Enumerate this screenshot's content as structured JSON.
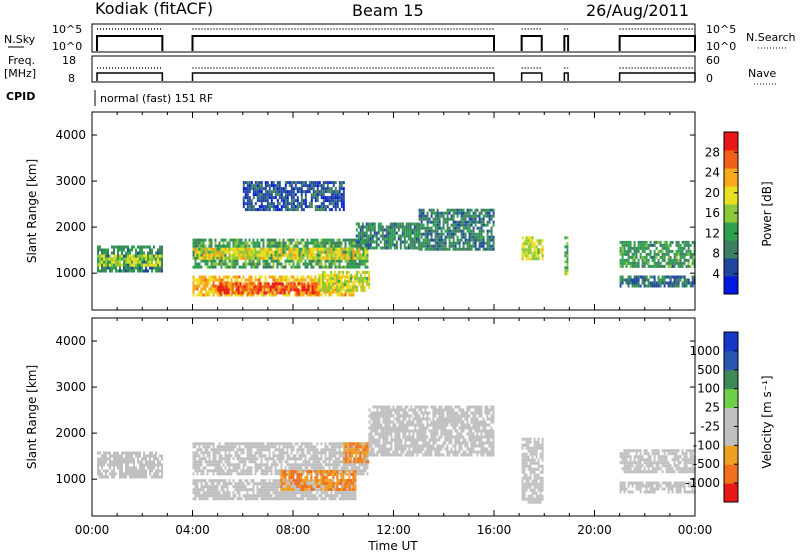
{
  "header": {
    "station": "Kodiak (fitACF)",
    "beam": "Beam 15",
    "date": "26/Aug/2011"
  },
  "panels": {
    "nsky": {
      "label": "N.Sky",
      "ticks_left": [
        "10^5",
        "10^0"
      ],
      "ticks_right": [
        "10^5",
        "10^0"
      ],
      "right_label": "N.Search"
    },
    "freq": {
      "label_lines": [
        "Freq.",
        "[MHz]"
      ],
      "ticks_left": [
        "18",
        "8"
      ],
      "ticks_right": [
        "60",
        "0"
      ],
      "right_label": "Nave"
    },
    "cpid": {
      "label": "CPID",
      "value": "normal (fast) 151 RF"
    }
  },
  "colors": {
    "power": [
      "#0018e0",
      "#2046a0",
      "#3c8060",
      "#2fa050",
      "#8cc838",
      "#e8e020",
      "#f8a818",
      "#f06018",
      "#e81818"
    ],
    "velocity": [
      "#1838c8",
      "#2a58b0",
      "#3d8a58",
      "#6ed048",
      "#c0c0c0",
      "#c0c0c0",
      "#f0a020",
      "#f07020",
      "#e81818"
    ]
  },
  "chart_data": [
    {
      "type": "heatmap",
      "name": "power",
      "ylabel": "Slant Range [km]",
      "yticks": [
        "1000",
        "2000",
        "3000",
        "4000"
      ],
      "ylim": [
        200,
        4500
      ],
      "xlim_hours": [
        0,
        24
      ],
      "colorbar_label": "Power [dB]",
      "colorbar_ticks": [
        "4",
        "8",
        "12",
        "16",
        "20",
        "24",
        "28"
      ],
      "colorbar_range": [
        0,
        32
      ],
      "bands": [
        {
          "t0": 0.2,
          "t1": 2.8,
          "r0": 1050,
          "r1": 1600,
          "v": 10
        },
        {
          "t0": 0.2,
          "t1": 2.8,
          "r0": 1200,
          "r1": 1400,
          "v": 17
        },
        {
          "t0": 4.0,
          "t1": 11.0,
          "r0": 1150,
          "r1": 1750,
          "v": 12
        },
        {
          "t0": 4.0,
          "t1": 11.0,
          "r0": 1300,
          "r1": 1550,
          "v": 19
        },
        {
          "t0": 4.0,
          "t1": 10.5,
          "r0": 550,
          "r1": 950,
          "v": 22
        },
        {
          "t0": 5.0,
          "t1": 9.0,
          "r0": 600,
          "r1": 800,
          "v": 28
        },
        {
          "t0": 9.0,
          "t1": 11.0,
          "r0": 650,
          "r1": 1050,
          "v": 18
        },
        {
          "t0": 6.0,
          "t1": 10.0,
          "r0": 2400,
          "r1": 3000,
          "v": 6
        },
        {
          "t0": 10.5,
          "t1": 13.0,
          "r0": 1550,
          "r1": 2100,
          "v": 10
        },
        {
          "t0": 13.0,
          "t1": 16.0,
          "r0": 1500,
          "r1": 2400,
          "v": 9
        },
        {
          "t0": 17.1,
          "t1": 17.9,
          "r0": 1300,
          "r1": 1800,
          "v": 18
        },
        {
          "t0": 18.8,
          "t1": 18.95,
          "r0": 1000,
          "r1": 1800,
          "v": 14
        },
        {
          "t0": 21.0,
          "t1": 24.0,
          "r0": 1150,
          "r1": 1700,
          "v": 11
        },
        {
          "t0": 21.0,
          "t1": 24.0,
          "r0": 750,
          "r1": 950,
          "v": 8
        }
      ]
    },
    {
      "type": "heatmap",
      "name": "velocity",
      "xlabel": "Time UT",
      "ylabel": "Slant Range [km]",
      "yticks": [
        "1000",
        "2000",
        "3000",
        "4000"
      ],
      "ylim": [
        200,
        4500
      ],
      "xticks": [
        "00:00",
        "04:00",
        "08:00",
        "12:00",
        "16:00",
        "20:00",
        "00:00"
      ],
      "xlim_hours": [
        0,
        24
      ],
      "colorbar_label": "Velocity [m s⁻¹]",
      "colorbar_ticks": [
        "1000",
        "500",
        "100",
        "25",
        "-25",
        "-100",
        "-500",
        "-1000"
      ],
      "bands": [
        {
          "t0": 0.2,
          "t1": 2.8,
          "r0": 1050,
          "r1": 1600,
          "v": 0
        },
        {
          "t0": 4.0,
          "t1": 11.0,
          "r0": 1100,
          "r1": 1800,
          "v": 0
        },
        {
          "t0": 4.0,
          "t1": 10.5,
          "r0": 550,
          "r1": 1000,
          "v": 0
        },
        {
          "t0": 7.5,
          "t1": 10.5,
          "r0": 800,
          "r1": 1200,
          "v": -100
        },
        {
          "t0": 10.0,
          "t1": 11.0,
          "r0": 1400,
          "r1": 1800,
          "v": -100
        },
        {
          "t0": 11.0,
          "t1": 16.0,
          "r0": 1500,
          "r1": 2600,
          "v": 0
        },
        {
          "t0": 17.1,
          "t1": 17.9,
          "r0": 500,
          "r1": 1900,
          "v": 0
        },
        {
          "t0": 21.0,
          "t1": 24.0,
          "r0": 1150,
          "r1": 1650,
          "v": 0
        },
        {
          "t0": 21.0,
          "t1": 24.0,
          "r0": 750,
          "r1": 950,
          "v": 0
        }
      ]
    }
  ]
}
